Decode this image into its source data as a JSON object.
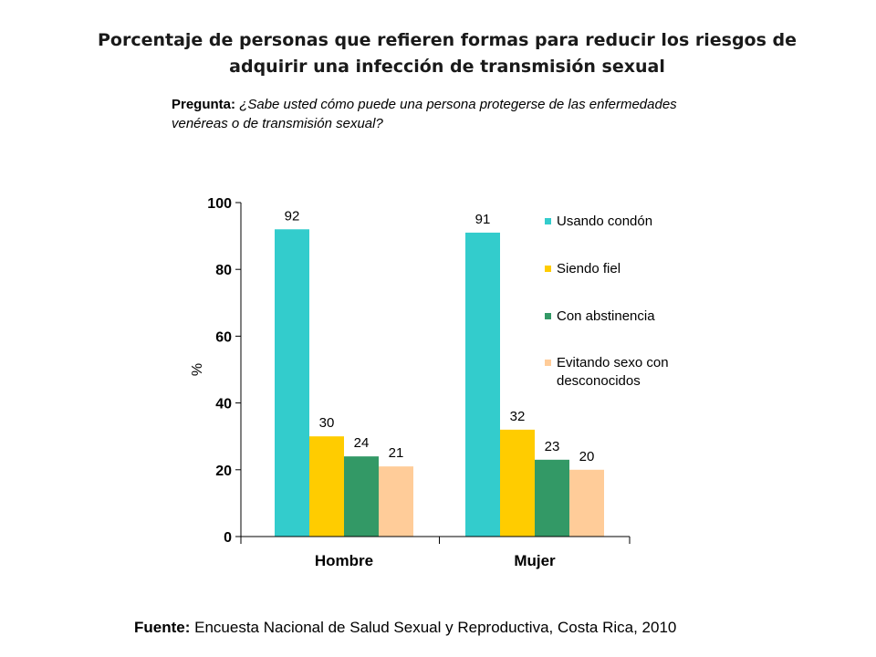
{
  "header": {
    "title_line1": "Porcentaje de personas que refieren formas para reducir los riesgos de",
    "title_line2": "adquirir una infección de transmisión sexual",
    "question_label": "Pregunta:",
    "question_text": "¿Sabe usted cómo puede una persona protegerse de las enfermedades venéreas o de transmisión sexual?"
  },
  "footer": {
    "source_label": "Fuente:",
    "source_text": "Encuesta Nacional de Salud Sexual y Reproductiva, Costa Rica, 2010"
  },
  "chart_data": {
    "type": "bar",
    "title": "Porcentaje de personas que refieren formas para reducir los riesgos de adquirir una infección de transmisión sexual",
    "xlabel": "",
    "ylabel": "%",
    "ylim": [
      0,
      100
    ],
    "yticks": [
      0,
      20,
      40,
      60,
      80,
      100
    ],
    "grid": false,
    "legend_position": "right",
    "categories": [
      "Hombre",
      "Mujer"
    ],
    "series": [
      {
        "name": "Usando condón",
        "line2": "",
        "color": "#33cccc",
        "values": [
          92,
          91
        ]
      },
      {
        "name": "Siendo fiel",
        "line2": "",
        "color": "#ffcc00",
        "values": [
          30,
          32
        ]
      },
      {
        "name": "Con abstinencia",
        "line2": "",
        "color": "#339966",
        "values": [
          24,
          23
        ]
      },
      {
        "name": "Evitando sexo con",
        "line2": "desconocidos",
        "color": "#ffcc99",
        "values": [
          21,
          20
        ]
      }
    ]
  }
}
